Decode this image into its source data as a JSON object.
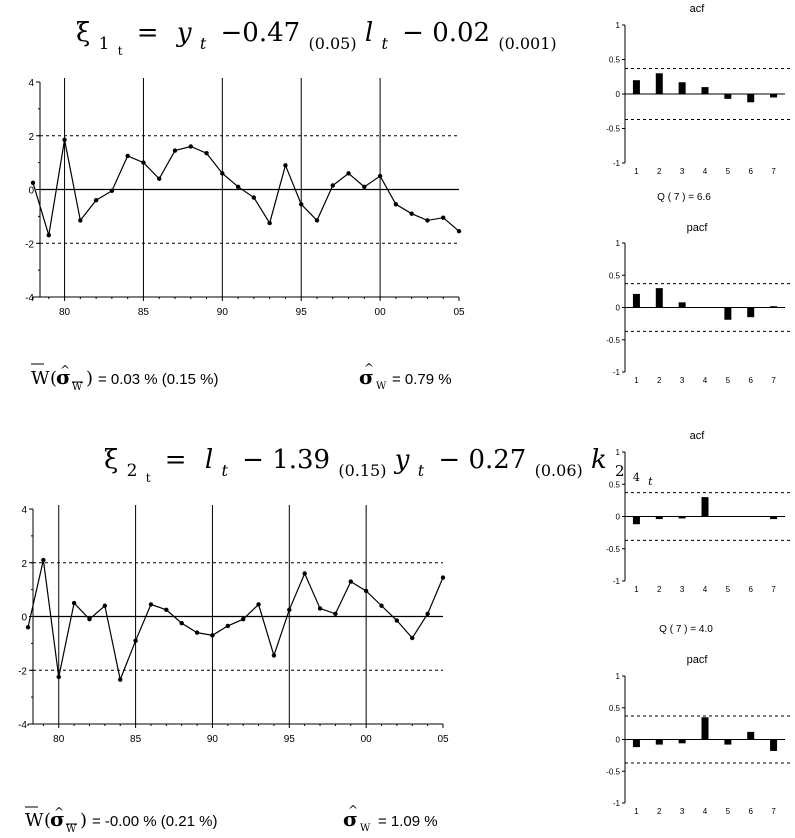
{
  "equations": [
    {
      "xi": "ξ",
      "sub1": "1",
      "sub1b": "t",
      "eq": "=",
      "v1": "y",
      "v1s": "t",
      "op1": "−0.47",
      "c1s": "(0.05)",
      "v2": "l",
      "v2s": "t",
      "op2": "− 0.02",
      "c2s": "(0.001)"
    },
    {
      "xi": "ξ",
      "sub1": "2",
      "sub1b": "t",
      "eq": "=",
      "v1": "l",
      "v1s": "t",
      "op1": "− 1.39",
      "c1s": "(0.15)",
      "v2": "y",
      "v2s": "t",
      "op2": "− 0.27",
      "c2s": "(0.06)",
      "v3": "k",
      "v3s": "2",
      "v3ss": "4",
      "v3sss": "t"
    }
  ],
  "stats": [
    {
      "mean_label": "W",
      "mean_sigma": "σ",
      "mean_sigma_sub": "W",
      "mean_value": "= 0.03 % (0.15 %)",
      "sigma": "σ",
      "sigma_sub": "W",
      "sigma_value": "= 0.79 %"
    },
    {
      "mean_label": "W",
      "mean_sigma": "σ",
      "mean_sigma_sub": "W",
      "mean_value": "= -0.00 % (0.21 %)",
      "sigma": "σ",
      "sigma_sub": "W",
      "sigma_value": "= 1.09 %"
    }
  ],
  "chart_data": [
    {
      "type": "line",
      "ylim": [
        -4,
        4
      ],
      "xlim": [
        1978,
        2005
      ],
      "yticks": [
        "4",
        "2",
        "0",
        "-2",
        "-4"
      ],
      "xtick_labels": [
        "80",
        "85",
        "90",
        "95",
        "00",
        "05"
      ],
      "x": [
        1978,
        1979,
        1980,
        1981,
        1982,
        1983,
        1984,
        1985,
        1986,
        1987,
        1988,
        1989,
        1990,
        1991,
        1992,
        1993,
        1994,
        1995,
        1996,
        1997,
        1998,
        1999,
        2000,
        2001,
        2002,
        2003,
        2004,
        2005
      ],
      "values": [
        0.25,
        -1.7,
        1.85,
        -1.15,
        -0.4,
        -0.05,
        1.25,
        1.0,
        0.4,
        1.45,
        1.6,
        1.35,
        0.6,
        0.1,
        -0.3,
        -1.25,
        0.9,
        -0.55,
        -1.15,
        0.15,
        0.6,
        0.1,
        0.5,
        -0.55,
        -0.9,
        -1.15,
        -1.05,
        -1.55
      ],
      "bands": [
        2,
        -2
      ]
    },
    {
      "type": "line",
      "ylim": [
        -4,
        4
      ],
      "xlim": [
        1978,
        2005
      ],
      "yticks": [
        "4",
        "2",
        "0",
        "-2",
        "-4"
      ],
      "xtick_labels": [
        "80",
        "85",
        "90",
        "95",
        "00",
        "05"
      ],
      "x": [
        1978,
        1979,
        1980,
        1981,
        1982,
        1983,
        1984,
        1985,
        1986,
        1987,
        1988,
        1989,
        1990,
        1991,
        1992,
        1993,
        1994,
        1995,
        1996,
        1997,
        1998,
        1999,
        2000,
        2001,
        2002,
        2003,
        2004,
        2005
      ],
      "values": [
        -0.4,
        2.1,
        -2.25,
        0.5,
        -0.1,
        0.4,
        -2.35,
        -0.9,
        0.45,
        0.25,
        -0.25,
        -0.6,
        -0.7,
        -0.35,
        -0.1,
        0.45,
        -1.45,
        0.25,
        1.6,
        0.3,
        0.1,
        1.3,
        0.95,
        0.4,
        -0.15,
        -0.8,
        0.1,
        1.45
      ],
      "bands": [
        2,
        -2
      ]
    },
    {
      "type": "bar",
      "title": "acf",
      "categories": [
        "1",
        "2",
        "3",
        "4",
        "5",
        "6",
        "7"
      ],
      "values": [
        0.2,
        0.3,
        0.17,
        0.1,
        -0.07,
        -0.12,
        -0.05
      ],
      "ylim": [
        -1,
        1
      ],
      "yticks": [
        "1",
        "0.5",
        "0",
        "-0.5",
        "-1"
      ],
      "bands": [
        0.37,
        -0.37
      ]
    },
    {
      "type": "bar",
      "title": "pacf",
      "categories": [
        "1",
        "2",
        "3",
        "4",
        "5",
        "6",
        "7"
      ],
      "values": [
        0.21,
        0.3,
        0.08,
        0.0,
        -0.19,
        -0.15,
        0.02
      ],
      "ylim": [
        -1,
        1
      ],
      "yticks": [
        "1",
        "0.5",
        "0",
        "-0.5",
        "-1"
      ],
      "bands": [
        0.37,
        -0.37
      ]
    },
    {
      "type": "bar",
      "title": "acf",
      "categories": [
        "1",
        "2",
        "3",
        "4",
        "5",
        "6",
        "7"
      ],
      "values": [
        -0.12,
        -0.04,
        -0.03,
        0.3,
        0.0,
        0.0,
        -0.04
      ],
      "ylim": [
        -1,
        1
      ],
      "yticks": [
        "1",
        "0.5",
        "0",
        "-0.5",
        "-1"
      ],
      "bands": [
        0.37,
        -0.37
      ]
    },
    {
      "type": "bar",
      "title": "pacf",
      "categories": [
        "1",
        "2",
        "3",
        "4",
        "5",
        "6",
        "7"
      ],
      "values": [
        -0.12,
        -0.08,
        -0.06,
        0.35,
        -0.08,
        0.12,
        -0.18
      ],
      "ylim": [
        -1,
        1
      ],
      "yticks": [
        "1",
        "0.5",
        "0",
        "-0.5",
        "-1"
      ],
      "bands": [
        0.37,
        -0.37
      ]
    }
  ],
  "q_stats": [
    "Q ( 7 ) = 6.6",
    "Q ( 7 ) = 4.0"
  ]
}
